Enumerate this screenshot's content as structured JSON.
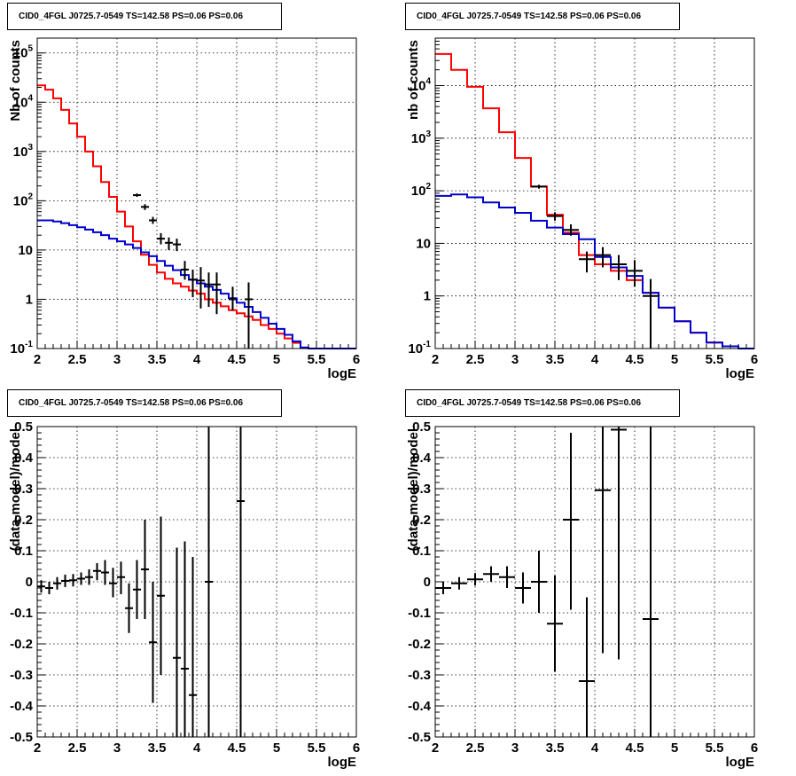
{
  "chart_data": [
    {
      "type": "line",
      "title": "CID0_4FGL J0725.7-0549 TS=142.58 PS=0.06 PS=0.06",
      "xlabel": "logE",
      "ylabel": "Nb of counts",
      "yscale": "log",
      "xlim": [
        2,
        6
      ],
      "ylim": [
        0.1,
        200000
      ],
      "grid": true,
      "xticks": [
        "2",
        "2.5",
        "3",
        "3.5",
        "4",
        "4.5",
        "5",
        "5.5",
        "6"
      ],
      "yticks": [
        {
          "base": "10",
          "exp": "-1",
          "value": 0.1
        },
        {
          "base": "1",
          "exp": "",
          "value": 1
        },
        {
          "base": "10",
          "exp": "",
          "value": 10
        },
        {
          "base": "10",
          "exp": "2",
          "value": 100
        },
        {
          "base": "10",
          "exp": "3",
          "value": 1000
        },
        {
          "base": "10",
          "exp": "4",
          "value": 10000
        },
        {
          "base": "10",
          "exp": "5",
          "value": 100000
        }
      ],
      "series": [
        {
          "color": "#ff0000",
          "style": "step",
          "edges": [
            2,
            2.1,
            2.2,
            2.3,
            2.4,
            2.5,
            2.6,
            2.7,
            2.8,
            2.9,
            3.0,
            3.1,
            3.2,
            3.3,
            3.4,
            3.5,
            3.6,
            3.7,
            3.8,
            3.9,
            4.0,
            4.1,
            4.2,
            4.3,
            4.4,
            4.5,
            4.6,
            4.7,
            4.8,
            4.9,
            5.0,
            5.1,
            5.2,
            5.3,
            5.4,
            5.5,
            5.6,
            5.7,
            5.8,
            5.9,
            6.0
          ],
          "values": [
            22000,
            18000,
            12000,
            7000,
            3700,
            2000,
            1000,
            500,
            240,
            120,
            60,
            30,
            15,
            8,
            5,
            3.5,
            2.6,
            2.1,
            1.8,
            1.5,
            1.3,
            1.0,
            0.85,
            0.72,
            0.6,
            0.52,
            0.45,
            0.38,
            0.3,
            0.25,
            0.2,
            0.16,
            0.13,
            0.105,
            0.1,
            0.1,
            0.1,
            0.1,
            0.1,
            0.1
          ]
        },
        {
          "color": "#0000cc",
          "style": "step",
          "edges": [
            2,
            2.1,
            2.2,
            2.3,
            2.4,
            2.5,
            2.6,
            2.7,
            2.8,
            2.9,
            3.0,
            3.1,
            3.2,
            3.3,
            3.4,
            3.5,
            3.6,
            3.7,
            3.8,
            3.9,
            4.0,
            4.1,
            4.2,
            4.3,
            4.4,
            4.5,
            4.6,
            4.7,
            4.8,
            4.9,
            5.0,
            5.1,
            5.2,
            5.3,
            5.4,
            5.5,
            5.6,
            5.7,
            5.8,
            5.9,
            6.0
          ],
          "values": [
            40,
            40,
            38,
            35,
            32,
            29,
            26,
            23,
            20,
            17,
            15,
            13,
            11,
            9,
            7.5,
            6,
            4.8,
            3.9,
            3.1,
            2.5,
            2.1,
            1.8,
            1.55,
            1.3,
            1.05,
            0.85,
            0.7,
            0.55,
            0.42,
            0.32,
            0.25,
            0.19,
            0.14,
            0.105,
            0.1,
            0.1,
            0.1,
            0.1,
            0.1,
            0.1
          ]
        }
      ],
      "points": [
        {
          "x": 3.25,
          "y": 130,
          "xerr": 0.05,
          "ylo": 120,
          "yhi": 140
        },
        {
          "x": 3.35,
          "y": 75,
          "xerr": 0.05,
          "ylo": 65,
          "yhi": 85
        },
        {
          "x": 3.45,
          "y": 40,
          "xerr": 0.05,
          "ylo": 34,
          "yhi": 47
        },
        {
          "x": 3.55,
          "y": 17,
          "xerr": 0.05,
          "ylo": 13,
          "yhi": 22
        },
        {
          "x": 3.65,
          "y": 14,
          "xerr": 0.05,
          "ylo": 10,
          "yhi": 18
        },
        {
          "x": 3.75,
          "y": 13,
          "xerr": 0.05,
          "ylo": 9.5,
          "yhi": 17
        },
        {
          "x": 3.85,
          "y": 4,
          "xerr": 0.05,
          "ylo": 2.5,
          "yhi": 6
        },
        {
          "x": 3.95,
          "y": 2.5,
          "xerr": 0.05,
          "ylo": 1.1,
          "yhi": 4
        },
        {
          "x": 4.05,
          "y": 2.4,
          "xerr": 0.05,
          "ylo": 0.65,
          "yhi": 4.5
        },
        {
          "x": 4.15,
          "y": 2,
          "xerr": 0.05,
          "ylo": 0.7,
          "yhi": 3.5
        },
        {
          "x": 4.25,
          "y": 2,
          "xerr": 0.05,
          "ylo": 0.5,
          "yhi": 3.5
        },
        {
          "x": 4.45,
          "y": 1,
          "xerr": 0.05,
          "ylo": 0.6,
          "yhi": 1.8
        },
        {
          "x": 4.65,
          "y": 1,
          "xerr": 0.05,
          "ylo": 0.1,
          "yhi": 2.2
        }
      ]
    },
    {
      "type": "line",
      "title": "CID0_4FGL J0725.7-0549 TS=142.58 PS=0.06 PS=0.06",
      "xlabel": "logE",
      "ylabel": "nb of counts",
      "yscale": "log",
      "xlim": [
        2,
        6
      ],
      "ylim": [
        0.1,
        80000
      ],
      "grid": true,
      "xticks": [
        "2",
        "2.5",
        "3",
        "3.5",
        "4",
        "4.5",
        "5",
        "5.5",
        "6"
      ],
      "yticks": [
        {
          "base": "10",
          "exp": "-1",
          "value": 0.1
        },
        {
          "base": "1",
          "exp": "",
          "value": 1
        },
        {
          "base": "10",
          "exp": "",
          "value": 10
        },
        {
          "base": "10",
          "exp": "2",
          "value": 100
        },
        {
          "base": "10",
          "exp": "3",
          "value": 1000
        },
        {
          "base": "10",
          "exp": "4",
          "value": 10000
        }
      ],
      "series": [
        {
          "color": "#ff0000",
          "style": "step",
          "edges": [
            2,
            2.2,
            2.4,
            2.6,
            2.8,
            3.0,
            3.2,
            3.4,
            3.6,
            3.8,
            4.0,
            4.2,
            4.4,
            4.6,
            4.8,
            5.0,
            5.2,
            5.4,
            5.6,
            5.8,
            6.0
          ],
          "values": [
            40000,
            20000,
            9500,
            3700,
            1300,
            420,
            120,
            35,
            16,
            6,
            4,
            3,
            2,
            1.15,
            0.6,
            0.33,
            0.2,
            0.13,
            0.11,
            0.1
          ]
        },
        {
          "color": "#0000cc",
          "style": "step",
          "edges": [
            2,
            2.2,
            2.4,
            2.6,
            2.8,
            3.0,
            3.2,
            3.4,
            3.6,
            3.8,
            4.0,
            4.2,
            4.4,
            4.6,
            4.8,
            5.0,
            5.2,
            5.4,
            5.6,
            5.8,
            6.0
          ],
          "values": [
            80,
            85,
            75,
            60,
            48,
            38,
            27,
            20,
            15,
            12,
            5.5,
            3.5,
            2.4,
            1.15,
            0.6,
            0.33,
            0.2,
            0.13,
            0.11,
            0.1
          ]
        }
      ],
      "points": [
        {
          "x": 3.3,
          "y": 120,
          "xerr": 0.1,
          "ylo": 110,
          "yhi": 130
        },
        {
          "x": 3.5,
          "y": 33,
          "xerr": 0.1,
          "ylo": 27,
          "yhi": 39
        },
        {
          "x": 3.7,
          "y": 18,
          "xerr": 0.1,
          "ylo": 14,
          "yhi": 23
        },
        {
          "x": 3.9,
          "y": 5,
          "xerr": 0.1,
          "ylo": 2.8,
          "yhi": 7
        },
        {
          "x": 4.1,
          "y": 6,
          "xerr": 0.1,
          "ylo": 3.5,
          "yhi": 8.5
        },
        {
          "x": 4.3,
          "y": 4,
          "xerr": 0.1,
          "ylo": 2,
          "yhi": 6
        },
        {
          "x": 4.5,
          "y": 3,
          "xerr": 0.1,
          "ylo": 1.5,
          "yhi": 4.8
        },
        {
          "x": 4.7,
          "y": 1,
          "xerr": 0.1,
          "ylo": 0.1,
          "yhi": 2.1
        }
      ]
    },
    {
      "type": "scatter",
      "title": "CID0_4FGL J0725.7-0549 TS=142.58 PS=0.06 PS=0.06",
      "xlabel": "logE",
      "ylabel": "(data-model)/model",
      "yscale": "linear",
      "xlim": [
        2,
        6
      ],
      "ylim": [
        -0.5,
        0.5
      ],
      "grid": true,
      "xticks": [
        "2",
        "2.5",
        "3",
        "3.5",
        "4",
        "4.5",
        "5",
        "5.5",
        "6"
      ],
      "yticks": [
        {
          "base": "-0.5",
          "exp": "",
          "value": -0.5
        },
        {
          "base": "-0.4",
          "exp": "",
          "value": -0.4
        },
        {
          "base": "-0.3",
          "exp": "",
          "value": -0.3
        },
        {
          "base": "-0.2",
          "exp": "",
          "value": -0.2
        },
        {
          "base": "-0.1",
          "exp": "",
          "value": -0.1
        },
        {
          "base": "0",
          "exp": "",
          "value": 0
        },
        {
          "base": "0.1",
          "exp": "",
          "value": 0.1
        },
        {
          "base": "0.2",
          "exp": "",
          "value": 0.2
        },
        {
          "base": "0.3",
          "exp": "",
          "value": 0.3
        },
        {
          "base": "0.4",
          "exp": "",
          "value": 0.4
        },
        {
          "base": "0.5",
          "exp": "",
          "value": 0.5
        }
      ],
      "series": [],
      "points": [
        {
          "x": 2.05,
          "y": -0.015,
          "xerr": 0.05,
          "ylo": -0.035,
          "yhi": 0.005
        },
        {
          "x": 2.15,
          "y": -0.02,
          "xerr": 0.05,
          "ylo": -0.04,
          "yhi": 0.0
        },
        {
          "x": 2.25,
          "y": -0.005,
          "xerr": 0.05,
          "ylo": -0.025,
          "yhi": 0.015
        },
        {
          "x": 2.35,
          "y": 0.003,
          "xerr": 0.05,
          "ylo": -0.017,
          "yhi": 0.023
        },
        {
          "x": 2.45,
          "y": 0.005,
          "xerr": 0.05,
          "ylo": -0.015,
          "yhi": 0.025
        },
        {
          "x": 2.55,
          "y": 0.01,
          "xerr": 0.05,
          "ylo": -0.01,
          "yhi": 0.03
        },
        {
          "x": 2.65,
          "y": 0.015,
          "xerr": 0.05,
          "ylo": -0.01,
          "yhi": 0.04
        },
        {
          "x": 2.75,
          "y": 0.035,
          "xerr": 0.05,
          "ylo": 0.005,
          "yhi": 0.06
        },
        {
          "x": 2.85,
          "y": 0.03,
          "xerr": 0.05,
          "ylo": -0.01,
          "yhi": 0.07
        },
        {
          "x": 2.95,
          "y": -0.005,
          "xerr": 0.05,
          "ylo": -0.05,
          "yhi": 0.045
        },
        {
          "x": 3.05,
          "y": 0.015,
          "xerr": 0.05,
          "ylo": -0.04,
          "yhi": 0.065
        },
        {
          "x": 3.15,
          "y": -0.085,
          "xerr": 0.05,
          "ylo": -0.165,
          "yhi": -0.005
        },
        {
          "x": 3.25,
          "y": -0.025,
          "xerr": 0.05,
          "ylo": -0.12,
          "yhi": 0.07
        },
        {
          "x": 3.35,
          "y": 0.04,
          "xerr": 0.05,
          "ylo": -0.12,
          "yhi": 0.2
        },
        {
          "x": 3.45,
          "y": -0.195,
          "xerr": 0.05,
          "ylo": -0.39,
          "yhi": 0.0
        },
        {
          "x": 3.55,
          "y": -0.045,
          "xerr": 0.05,
          "ylo": -0.3,
          "yhi": 0.21
        },
        {
          "x": 3.75,
          "y": -0.245,
          "xerr": 0.05,
          "ylo": -0.5,
          "yhi": 0.11
        },
        {
          "x": 3.85,
          "y": -0.28,
          "xerr": 0.05,
          "ylo": -0.5,
          "yhi": 0.13
        },
        {
          "x": 3.95,
          "y": -0.365,
          "xerr": 0.05,
          "ylo": -0.5,
          "yhi": 0.08
        },
        {
          "x": 4.15,
          "y": 0.0,
          "xerr": 0.05,
          "ylo": -0.5,
          "yhi": 0.5
        },
        {
          "x": 4.55,
          "y": 0.26,
          "xerr": 0.05,
          "ylo": -0.5,
          "yhi": 0.5
        }
      ]
    },
    {
      "type": "scatter",
      "title": "CID0_4FGL J0725.7-0549 TS=142.58 PS=0.06 PS=0.06",
      "xlabel": "logE",
      "ylabel": "(data-model)/model",
      "yscale": "linear",
      "xlim": [
        2,
        6
      ],
      "ylim": [
        -0.5,
        0.5
      ],
      "grid": true,
      "xticks": [
        "2",
        "2.5",
        "3",
        "3.5",
        "4",
        "4.5",
        "5",
        "5.5",
        "6"
      ],
      "yticks": [
        {
          "base": "-0.5",
          "exp": "",
          "value": -0.5
        },
        {
          "base": "-0.4",
          "exp": "",
          "value": -0.4
        },
        {
          "base": "-0.3",
          "exp": "",
          "value": -0.3
        },
        {
          "base": "-0.2",
          "exp": "",
          "value": -0.2
        },
        {
          "base": "-0.1",
          "exp": "",
          "value": -0.1
        },
        {
          "base": "0",
          "exp": "",
          "value": 0
        },
        {
          "base": "0.1",
          "exp": "",
          "value": 0.1
        },
        {
          "base": "0.2",
          "exp": "",
          "value": 0.2
        },
        {
          "base": "0.3",
          "exp": "",
          "value": 0.3
        },
        {
          "base": "0.4",
          "exp": "",
          "value": 0.4
        },
        {
          "base": "0.5",
          "exp": "",
          "value": 0.5
        }
      ],
      "series": [],
      "points": [
        {
          "x": 2.1,
          "y": -0.02,
          "xerr": 0.1,
          "ylo": -0.04,
          "yhi": 0.0
        },
        {
          "x": 2.3,
          "y": -0.005,
          "xerr": 0.1,
          "ylo": -0.025,
          "yhi": 0.015
        },
        {
          "x": 2.5,
          "y": 0.008,
          "xerr": 0.1,
          "ylo": -0.012,
          "yhi": 0.028
        },
        {
          "x": 2.7,
          "y": 0.025,
          "xerr": 0.1,
          "ylo": 0.0,
          "yhi": 0.05
        },
        {
          "x": 2.9,
          "y": 0.015,
          "xerr": 0.1,
          "ylo": -0.02,
          "yhi": 0.05
        },
        {
          "x": 3.1,
          "y": -0.02,
          "xerr": 0.1,
          "ylo": -0.07,
          "yhi": 0.03
        },
        {
          "x": 3.3,
          "y": 0.0,
          "xerr": 0.1,
          "ylo": -0.1,
          "yhi": 0.1
        },
        {
          "x": 3.5,
          "y": -0.135,
          "xerr": 0.1,
          "ylo": -0.29,
          "yhi": 0.02
        },
        {
          "x": 3.7,
          "y": 0.2,
          "xerr": 0.1,
          "ylo": -0.09,
          "yhi": 0.48
        },
        {
          "x": 3.9,
          "y": -0.32,
          "xerr": 0.1,
          "ylo": -0.5,
          "yhi": -0.05
        },
        {
          "x": 4.1,
          "y": 0.295,
          "xerr": 0.1,
          "ylo": -0.23,
          "yhi": 0.5
        },
        {
          "x": 4.3,
          "y": 0.49,
          "xerr": 0.1,
          "ylo": -0.25,
          "yhi": 0.5
        },
        {
          "x": 4.7,
          "y": -0.12,
          "xerr": 0.1,
          "ylo": -0.5,
          "yhi": 0.5
        }
      ]
    }
  ]
}
